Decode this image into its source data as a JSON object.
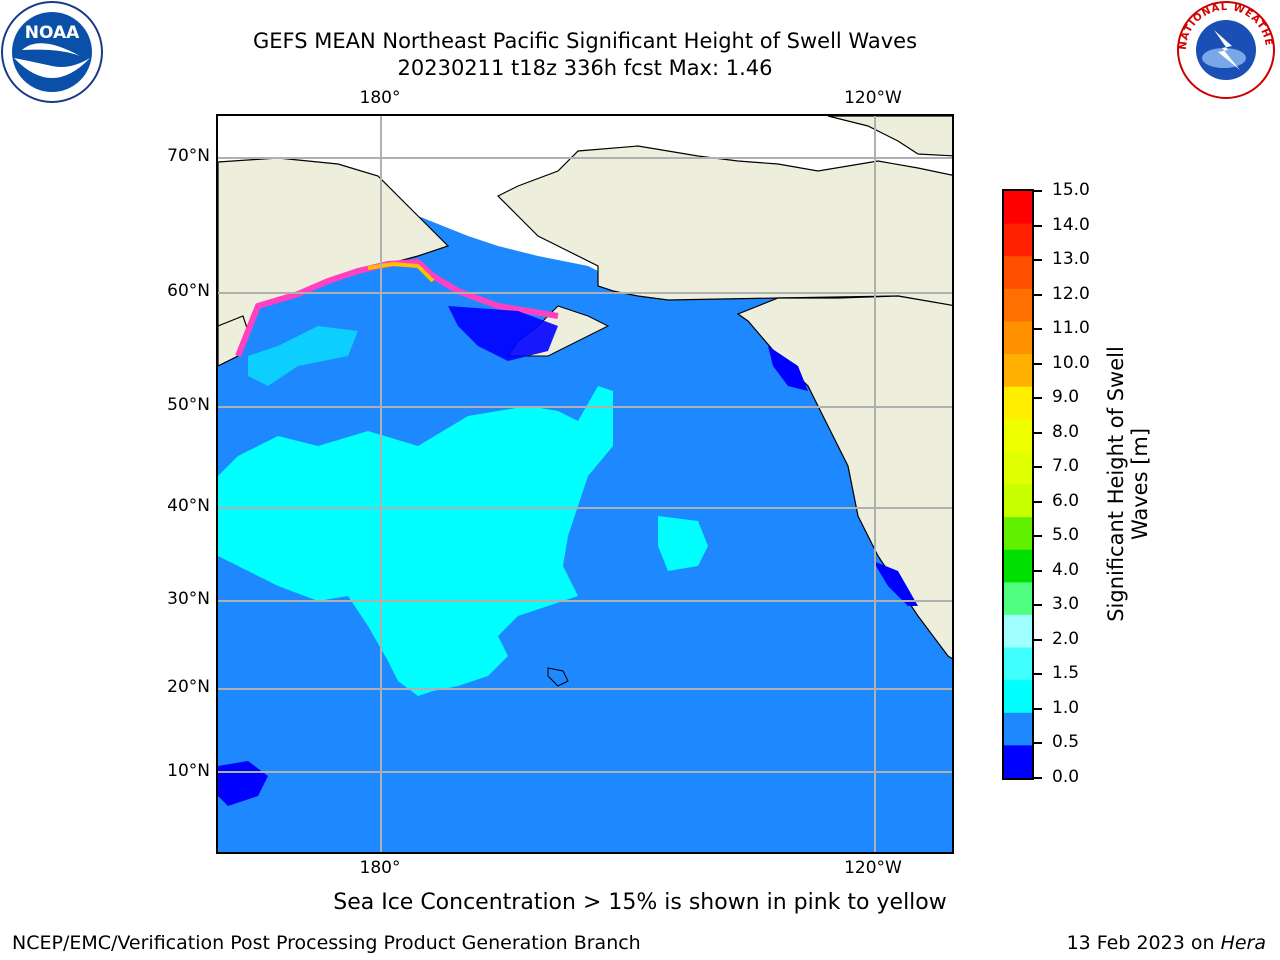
{
  "header": {
    "title_line1": "GEFS MEAN Northeast Pacific Significant Height of Swell Waves",
    "title_line2": "20230211 t18z 336h fcst   Max: 1.46"
  },
  "map": {
    "lon_labels_top": [
      "180°",
      "120°W"
    ],
    "lon_labels_bottom": [
      "180°",
      "120°W"
    ],
    "lat_labels": [
      "70°N",
      "60°N",
      "50°N",
      "40°N",
      "30°N",
      "20°N",
      "10°N"
    ],
    "ocean_color": "#1e88ff",
    "land_color": "#eeeedc",
    "swell_1_1_5_color": "#00ffff",
    "low_swell_color": "#0000ff",
    "ice_colors": [
      "#ff40c0",
      "#ffc000",
      "#ffff00"
    ]
  },
  "colorbar": {
    "title": "Significant Height of Swell Waves [m]",
    "title_line1": "Significant Height of Swell",
    "title_line2": "Waves [m]",
    "levels": [
      "15.0",
      "14.0",
      "13.0",
      "12.0",
      "11.0",
      "10.0",
      "9.0",
      "8.0",
      "7.0",
      "6.0",
      "5.0",
      "4.0",
      "3.0",
      "2.0",
      "1.5",
      "1.0",
      "0.5",
      "0.0"
    ],
    "colors": [
      "#ff0000",
      "#ff2000",
      "#ff5000",
      "#ff7000",
      "#ff9000",
      "#ffb000",
      "#ffee00",
      "#f0ff00",
      "#e0ff00",
      "#c8ff00",
      "#60f000",
      "#00e000",
      "#50ff80",
      "#a0ffff",
      "#40ffff",
      "#00ffff",
      "#1e88ff",
      "#0000ff"
    ]
  },
  "note": "Sea Ice Concentration > 15% is shown in pink to yellow",
  "footer": {
    "left": "NCEP/EMC/Verification Post Processing Product Generation Branch",
    "right_prefix": "13 Feb 2023 on ",
    "right_host": "Hera"
  },
  "logos": {
    "left": "noaa-logo",
    "right": "nws-logo",
    "left_text": "NOAA",
    "right_text": "NATIONAL WEATHER SERVICE"
  }
}
